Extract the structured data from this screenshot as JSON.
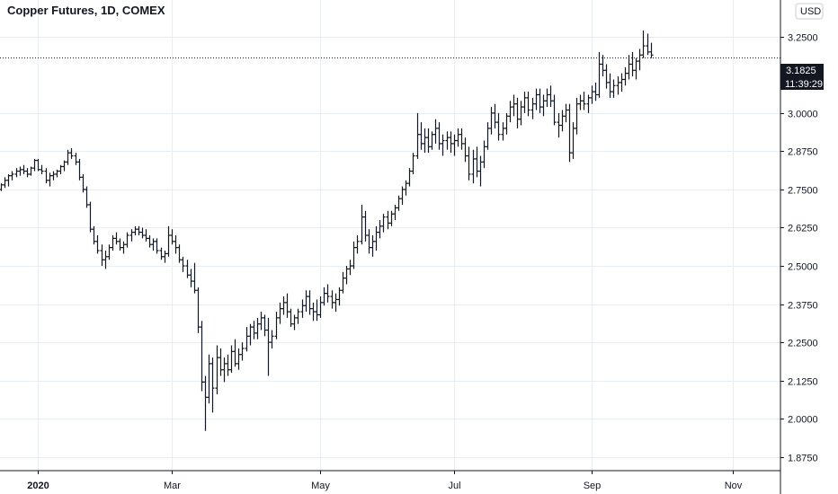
{
  "title": "Copper Futures, 1D, COMEX",
  "currency_button": "USD",
  "price_label": "3.1825",
  "countdown_label": "11:39:29",
  "chart_data": {
    "type": "ohlc",
    "title": "Copper Futures, 1D, COMEX",
    "currency": "USD",
    "ylim": [
      1.83,
      3.37
    ],
    "yticks": [
      "3.2500",
      "3.0000",
      "2.8750",
      "2.7500",
      "2.6250",
      "2.5000",
      "2.3750",
      "2.2500",
      "2.1250",
      "2.0000",
      "1.8750"
    ],
    "ytick_values": [
      3.25,
      3.0,
      2.875,
      2.75,
      2.625,
      2.5,
      2.375,
      2.25,
      2.125,
      2.0,
      1.875
    ],
    "xticks": [
      {
        "label": "2020",
        "bar": 10,
        "bold": true
      },
      {
        "label": "Mar",
        "bar": 46,
        "bold": false
      },
      {
        "label": "May",
        "bar": 86,
        "bold": false
      },
      {
        "label": "Jul",
        "bar": 122,
        "bold": false
      },
      {
        "label": "Sep",
        "bar": 159,
        "bold": false
      },
      {
        "label": "Nov",
        "bar": 197,
        "bold": false
      }
    ],
    "last_price": 3.1825,
    "grid": true,
    "bars": [
      [
        2.75,
        2.77,
        2.745,
        2.765
      ],
      [
        2.765,
        2.79,
        2.755,
        2.78
      ],
      [
        2.78,
        2.8,
        2.76,
        2.795
      ],
      [
        2.795,
        2.81,
        2.78,
        2.8
      ],
      [
        2.8,
        2.82,
        2.79,
        2.81
      ],
      [
        2.81,
        2.825,
        2.795,
        2.815
      ],
      [
        2.815,
        2.83,
        2.8,
        2.81
      ],
      [
        2.81,
        2.82,
        2.79,
        2.8
      ],
      [
        2.8,
        2.825,
        2.795,
        2.82
      ],
      [
        2.82,
        2.85,
        2.81,
        2.845
      ],
      [
        2.845,
        2.85,
        2.81,
        2.815
      ],
      [
        2.815,
        2.83,
        2.8,
        2.81
      ],
      [
        2.81,
        2.82,
        2.77,
        2.78
      ],
      [
        2.78,
        2.805,
        2.76,
        2.795
      ],
      [
        2.795,
        2.81,
        2.78,
        2.8
      ],
      [
        2.8,
        2.815,
        2.79,
        2.81
      ],
      [
        2.81,
        2.83,
        2.8,
        2.825
      ],
      [
        2.825,
        2.845,
        2.81,
        2.84
      ],
      [
        2.84,
        2.88,
        2.83,
        2.87
      ],
      [
        2.87,
        2.885,
        2.85,
        2.86
      ],
      [
        2.86,
        2.87,
        2.83,
        2.84
      ],
      [
        2.84,
        2.85,
        2.78,
        2.79
      ],
      [
        2.79,
        2.8,
        2.74,
        2.75
      ],
      [
        2.75,
        2.76,
        2.69,
        2.7
      ],
      [
        2.7,
        2.71,
        2.61,
        2.62
      ],
      [
        2.62,
        2.63,
        2.57,
        2.58
      ],
      [
        2.58,
        2.6,
        2.54,
        2.55
      ],
      [
        2.55,
        2.57,
        2.5,
        2.52
      ],
      [
        2.52,
        2.55,
        2.49,
        2.53
      ],
      [
        2.53,
        2.57,
        2.52,
        2.56
      ],
      [
        2.56,
        2.6,
        2.55,
        2.59
      ],
      [
        2.59,
        2.61,
        2.57,
        2.58
      ],
      [
        2.58,
        2.59,
        2.55,
        2.56
      ],
      [
        2.56,
        2.58,
        2.54,
        2.57
      ],
      [
        2.57,
        2.61,
        2.56,
        2.6
      ],
      [
        2.6,
        2.62,
        2.58,
        2.61
      ],
      [
        2.61,
        2.63,
        2.6,
        2.62
      ],
      [
        2.62,
        2.63,
        2.6,
        2.61
      ],
      [
        2.61,
        2.625,
        2.59,
        2.6
      ],
      [
        2.6,
        2.62,
        2.58,
        2.59
      ],
      [
        2.59,
        2.6,
        2.56,
        2.57
      ],
      [
        2.57,
        2.59,
        2.55,
        2.58
      ],
      [
        2.58,
        2.59,
        2.54,
        2.55
      ],
      [
        2.55,
        2.56,
        2.52,
        2.53
      ],
      [
        2.53,
        2.55,
        2.51,
        2.54
      ],
      [
        2.54,
        2.63,
        2.53,
        2.6
      ],
      [
        2.6,
        2.62,
        2.57,
        2.58
      ],
      [
        2.58,
        2.6,
        2.54,
        2.56
      ],
      [
        2.56,
        2.57,
        2.51,
        2.52
      ],
      [
        2.52,
        2.53,
        2.48,
        2.5
      ],
      [
        2.5,
        2.52,
        2.46,
        2.47
      ],
      [
        2.47,
        2.49,
        2.43,
        2.45
      ],
      [
        2.45,
        2.51,
        2.41,
        2.42
      ],
      [
        2.42,
        2.43,
        2.28,
        2.3
      ],
      [
        2.3,
        2.32,
        2.09,
        2.12
      ],
      [
        2.12,
        2.14,
        1.96,
        2.07
      ],
      [
        2.07,
        2.21,
        2.05,
        2.18
      ],
      [
        2.18,
        2.2,
        2.02,
        2.1
      ],
      [
        2.1,
        2.24,
        2.08,
        2.2
      ],
      [
        2.2,
        2.23,
        2.14,
        2.16
      ],
      [
        2.16,
        2.2,
        2.12,
        2.18
      ],
      [
        2.18,
        2.21,
        2.14,
        2.16
      ],
      [
        2.16,
        2.24,
        2.15,
        2.22
      ],
      [
        2.22,
        2.26,
        2.17,
        2.18
      ],
      [
        2.18,
        2.23,
        2.16,
        2.21
      ],
      [
        2.21,
        2.25,
        2.19,
        2.23
      ],
      [
        2.23,
        2.3,
        2.22,
        2.27
      ],
      [
        2.27,
        2.31,
        2.24,
        2.3
      ],
      [
        2.3,
        2.32,
        2.26,
        2.28
      ],
      [
        2.28,
        2.33,
        2.26,
        2.31
      ],
      [
        2.31,
        2.35,
        2.29,
        2.33
      ],
      [
        2.33,
        2.34,
        2.27,
        2.29
      ],
      [
        2.29,
        2.33,
        2.14,
        2.25
      ],
      [
        2.25,
        2.29,
        2.23,
        2.27
      ],
      [
        2.27,
        2.35,
        2.26,
        2.33
      ],
      [
        2.33,
        2.38,
        2.31,
        2.36
      ],
      [
        2.36,
        2.4,
        2.34,
        2.38
      ],
      [
        2.38,
        2.41,
        2.33,
        2.35
      ],
      [
        2.35,
        2.36,
        2.3,
        2.31
      ],
      [
        2.31,
        2.34,
        2.29,
        2.33
      ],
      [
        2.33,
        2.36,
        2.31,
        2.35
      ],
      [
        2.35,
        2.39,
        2.33,
        2.37
      ],
      [
        2.37,
        2.42,
        2.35,
        2.4
      ],
      [
        2.4,
        2.42,
        2.34,
        2.36
      ],
      [
        2.36,
        2.38,
        2.32,
        2.35
      ],
      [
        2.35,
        2.39,
        2.32,
        2.34
      ],
      [
        2.34,
        2.4,
        2.33,
        2.38
      ],
      [
        2.38,
        2.43,
        2.37,
        2.41
      ],
      [
        2.41,
        2.44,
        2.38,
        2.4
      ],
      [
        2.4,
        2.42,
        2.36,
        2.38
      ],
      [
        2.38,
        2.41,
        2.35,
        2.39
      ],
      [
        2.39,
        2.43,
        2.37,
        2.42
      ],
      [
        2.42,
        2.48,
        2.41,
        2.46
      ],
      [
        2.46,
        2.5,
        2.44,
        2.49
      ],
      [
        2.49,
        2.52,
        2.47,
        2.5
      ],
      [
        2.5,
        2.58,
        2.49,
        2.56
      ],
      [
        2.56,
        2.6,
        2.54,
        2.58
      ],
      [
        2.58,
        2.7,
        2.57,
        2.66
      ],
      [
        2.66,
        2.68,
        2.58,
        2.6
      ],
      [
        2.6,
        2.62,
        2.54,
        2.56
      ],
      [
        2.56,
        2.6,
        2.53,
        2.58
      ],
      [
        2.58,
        2.63,
        2.55,
        2.61
      ],
      [
        2.61,
        2.65,
        2.59,
        2.63
      ],
      [
        2.63,
        2.67,
        2.61,
        2.66
      ],
      [
        2.66,
        2.68,
        2.62,
        2.64
      ],
      [
        2.64,
        2.68,
        2.63,
        2.67
      ],
      [
        2.67,
        2.7,
        2.65,
        2.69
      ],
      [
        2.69,
        2.73,
        2.68,
        2.72
      ],
      [
        2.72,
        2.76,
        2.7,
        2.75
      ],
      [
        2.75,
        2.78,
        2.73,
        2.77
      ],
      [
        2.77,
        2.82,
        2.76,
        2.81
      ],
      [
        2.81,
        2.87,
        2.8,
        2.86
      ],
      [
        2.86,
        3.0,
        2.85,
        2.93
      ],
      [
        2.93,
        2.97,
        2.88,
        2.9
      ],
      [
        2.9,
        2.95,
        2.87,
        2.92
      ],
      [
        2.92,
        2.95,
        2.87,
        2.89
      ],
      [
        2.89,
        2.94,
        2.88,
        2.93
      ],
      [
        2.93,
        2.98,
        2.9,
        2.95
      ],
      [
        2.95,
        2.97,
        2.88,
        2.9
      ],
      [
        2.9,
        2.93,
        2.86,
        2.91
      ],
      [
        2.91,
        2.94,
        2.88,
        2.92
      ],
      [
        2.92,
        2.94,
        2.87,
        2.9
      ],
      [
        2.9,
        2.93,
        2.86,
        2.91
      ],
      [
        2.91,
        2.95,
        2.89,
        2.93
      ],
      [
        2.93,
        2.95,
        2.88,
        2.9
      ],
      [
        2.9,
        2.92,
        2.84,
        2.86
      ],
      [
        2.86,
        2.89,
        2.78,
        2.8
      ],
      [
        2.8,
        2.88,
        2.77,
        2.85
      ],
      [
        2.85,
        2.89,
        2.79,
        2.81
      ],
      [
        2.81,
        2.86,
        2.76,
        2.84
      ],
      [
        2.84,
        2.91,
        2.82,
        2.89
      ],
      [
        2.89,
        2.97,
        2.88,
        2.95
      ],
      [
        2.95,
        3.02,
        2.93,
        3.0
      ],
      [
        3.0,
        3.03,
        2.95,
        2.97
      ],
      [
        2.97,
        3.0,
        2.91,
        2.93
      ],
      [
        2.93,
        2.97,
        2.91,
        2.95
      ],
      [
        2.95,
        3.0,
        2.93,
        2.99
      ],
      [
        2.99,
        3.04,
        2.97,
        3.02
      ],
      [
        3.02,
        3.06,
        2.99,
        3.03
      ],
      [
        3.03,
        3.05,
        2.95,
        2.98
      ],
      [
        2.98,
        3.04,
        2.96,
        3.02
      ],
      [
        3.02,
        3.07,
        3.0,
        3.05
      ],
      [
        3.05,
        3.07,
        2.99,
        3.01
      ],
      [
        3.01,
        3.05,
        2.98,
        3.03
      ],
      [
        3.03,
        3.08,
        3.01,
        3.06
      ],
      [
        3.06,
        3.08,
        3.0,
        3.02
      ],
      [
        3.02,
        3.06,
        2.99,
        3.04
      ],
      [
        3.04,
        3.08,
        3.02,
        3.06
      ],
      [
        3.06,
        3.09,
        3.02,
        3.04
      ],
      [
        3.04,
        3.06,
        2.96,
        2.97
      ],
      [
        2.97,
        3.0,
        2.92,
        2.96
      ],
      [
        2.96,
        3.01,
        2.94,
        2.99
      ],
      [
        2.99,
        3.03,
        2.97,
        3.01
      ],
      [
        3.01,
        3.03,
        2.84,
        2.87
      ],
      [
        2.87,
        2.97,
        2.85,
        2.95
      ],
      [
        2.95,
        3.05,
        2.93,
        3.03
      ],
      [
        3.03,
        3.06,
        3.01,
        3.04
      ],
      [
        3.04,
        3.07,
        3.01,
        3.03
      ],
      [
        3.03,
        3.06,
        3.0,
        3.05
      ],
      [
        3.05,
        3.09,
        3.03,
        3.07
      ],
      [
        3.07,
        3.1,
        3.04,
        3.06
      ],
      [
        3.06,
        3.2,
        3.05,
        3.16
      ],
      [
        3.16,
        3.19,
        3.12,
        3.14
      ],
      [
        3.14,
        3.16,
        3.08,
        3.1
      ],
      [
        3.1,
        3.13,
        3.05,
        3.07
      ],
      [
        3.07,
        3.11,
        3.05,
        3.09
      ],
      [
        3.09,
        3.12,
        3.06,
        3.1
      ],
      [
        3.1,
        3.13,
        3.07,
        3.11
      ],
      [
        3.11,
        3.15,
        3.09,
        3.13
      ],
      [
        3.13,
        3.19,
        3.11,
        3.16
      ],
      [
        3.16,
        3.2,
        3.12,
        3.14
      ],
      [
        3.14,
        3.18,
        3.11,
        3.17
      ],
      [
        3.17,
        3.21,
        3.14,
        3.19
      ],
      [
        3.19,
        3.27,
        3.18,
        3.22
      ],
      [
        3.22,
        3.26,
        3.19,
        3.2
      ],
      [
        3.2,
        3.23,
        3.18,
        3.19
      ]
    ]
  }
}
